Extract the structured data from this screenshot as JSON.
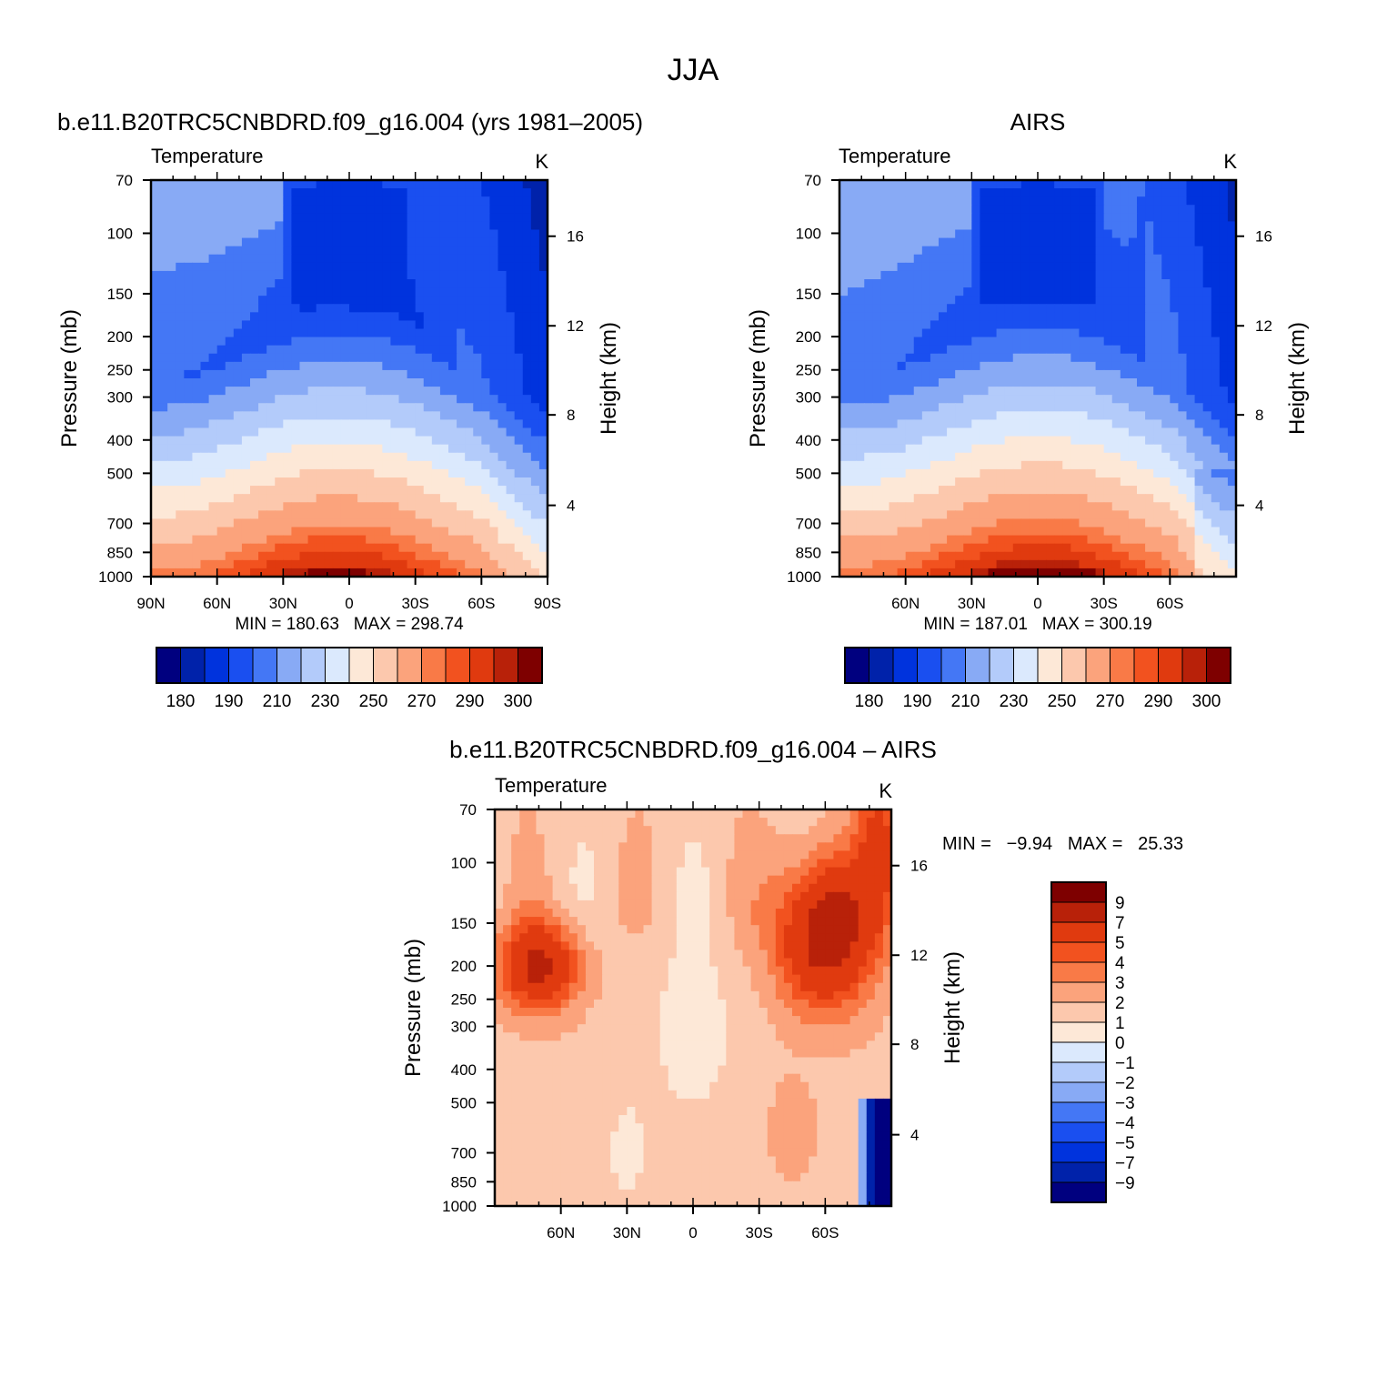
{
  "figure": {
    "title": "JJA"
  },
  "chart_data": [
    {
      "type": "heatmap",
      "panel": "model",
      "title": "b.e11.B20TRC5CNBDRD.f09_g16.004 (yrs 1981–2005)",
      "left_string": "Temperature",
      "right_string": "K",
      "ylabel": "Pressure (mb)",
      "ylabel_right": "Height (km)",
      "xlim": [
        90,
        -90
      ],
      "ylim": [
        1000,
        70
      ],
      "y_log": true,
      "x_ticks": [
        {
          "v": 90,
          "label": "90N"
        },
        {
          "v": 60,
          "label": "60N"
        },
        {
          "v": 30,
          "label": "30N"
        },
        {
          "v": 0,
          "label": "0"
        },
        {
          "v": -30,
          "label": "30S"
        },
        {
          "v": -60,
          "label": "60S"
        },
        {
          "v": -90,
          "label": "90S"
        }
      ],
      "y_ticks": [
        70,
        100,
        150,
        200,
        250,
        300,
        400,
        500,
        700,
        850,
        1000
      ],
      "height_ticks": [
        {
          "p": 102,
          "label": "16"
        },
        {
          "p": 186,
          "label": "12"
        },
        {
          "p": 338,
          "label": "8"
        },
        {
          "p": 620,
          "label": "4"
        }
      ],
      "minmax": "MIN = 180.63   MAX = 298.74",
      "colorbar_ticks": [
        "180",
        "190",
        "210",
        "230",
        "250",
        "270",
        "290",
        "300"
      ],
      "field": "model",
      "grid": false
    },
    {
      "type": "heatmap",
      "panel": "obs",
      "title": "AIRS",
      "left_string": "Temperature",
      "right_string": "K",
      "ylabel": "Pressure (mb)",
      "ylabel_right": "Height (km)",
      "xlim": [
        90,
        -90
      ],
      "ylim": [
        1000,
        70
      ],
      "y_log": true,
      "x_ticks": [
        {
          "v": 60,
          "label": "60N"
        },
        {
          "v": 30,
          "label": "30N"
        },
        {
          "v": 0,
          "label": "0"
        },
        {
          "v": -30,
          "label": "30S"
        },
        {
          "v": -60,
          "label": "60S"
        }
      ],
      "y_ticks": [
        70,
        100,
        150,
        200,
        250,
        300,
        400,
        500,
        700,
        850,
        1000
      ],
      "height_ticks": [
        {
          "p": 102,
          "label": "16"
        },
        {
          "p": 186,
          "label": "12"
        },
        {
          "p": 338,
          "label": "8"
        },
        {
          "p": 620,
          "label": "4"
        }
      ],
      "minmax": "MIN = 187.01   MAX = 300.19",
      "colorbar_ticks": [
        "180",
        "190",
        "210",
        "230",
        "250",
        "270",
        "290",
        "300"
      ],
      "field": "obs",
      "grid": false
    },
    {
      "type": "heatmap",
      "panel": "diff",
      "title": "b.e11.B20TRC5CNBDRD.f09_g16.004 – AIRS",
      "left_string": "Temperature",
      "right_string": "K",
      "ylabel": "Pressure (mb)",
      "ylabel_right": "Height (km)",
      "xlim": [
        90,
        -90
      ],
      "ylim": [
        1000,
        70
      ],
      "y_log": true,
      "x_ticks": [
        {
          "v": 60,
          "label": "60N"
        },
        {
          "v": 30,
          "label": "30N"
        },
        {
          "v": 0,
          "label": "0"
        },
        {
          "v": -30,
          "label": "30S"
        },
        {
          "v": -60,
          "label": "60S"
        }
      ],
      "y_ticks": [
        70,
        100,
        150,
        200,
        250,
        300,
        400,
        500,
        700,
        850,
        1000
      ],
      "height_ticks": [
        {
          "p": 102,
          "label": "16"
        },
        {
          "p": 186,
          "label": "12"
        },
        {
          "p": 338,
          "label": "8"
        },
        {
          "p": 620,
          "label": "4"
        }
      ],
      "minmax": "MIN =   −9.94   MAX =   25.33",
      "colorbar_ticks": [
        "9",
        "7",
        "5",
        "4",
        "3",
        "2",
        "1",
        "0",
        "−1",
        "−2",
        "−3",
        "−4",
        "−5",
        "−7",
        "−9"
      ],
      "field": "diff",
      "grid": false
    }
  ],
  "colors": {
    "temp_levels": [
      "#00007f",
      "#0022aa",
      "#0033dd",
      "#1a4ff0",
      "#4477f5",
      "#88aaf5",
      "#b3cbfa",
      "#dbe9fd",
      "#fde8d7",
      "#fcc8ad",
      "#fba37c",
      "#f97a47",
      "#f2521f",
      "#e03a0f",
      "#b82109",
      "#7e0000"
    ],
    "diff_levels": [
      "#7e0000",
      "#b82109",
      "#e03a0f",
      "#f2521f",
      "#f97a47",
      "#fba37c",
      "#fcc8ad",
      "#fde8d7",
      "#dbe9fd",
      "#b3cbfa",
      "#88aaf5",
      "#4477f5",
      "#1a4ff0",
      "#0033dd",
      "#0022aa",
      "#00007f"
    ]
  }
}
